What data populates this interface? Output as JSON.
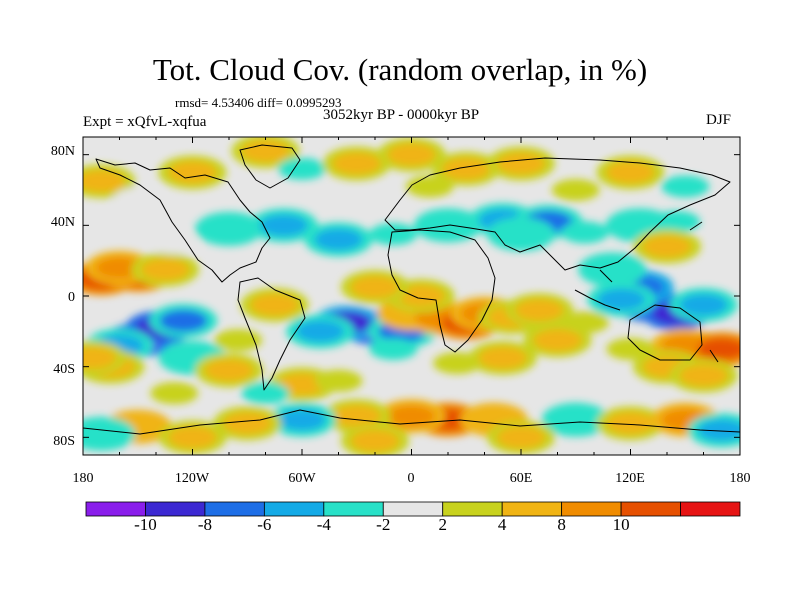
{
  "title": "Tot. Cloud Cov. (random overlap, in %)",
  "stats_line": "rmsd= 4.53406 diff= 0.0995293",
  "period": "3052kyr BP - 0000kyr BP",
  "experiment": "Expt = xQfvL-xqfua",
  "season": "DJF",
  "lon_labels": [
    "180",
    "120W",
    "60W",
    "0",
    "60E",
    "120E",
    "180"
  ],
  "lat_labels": [
    "80N",
    "40N",
    "0",
    "40S",
    "80S"
  ],
  "colorbar": {
    "colors": [
      "#8a1eeb",
      "#3c28d2",
      "#1e6ee6",
      "#14aae6",
      "#28e1c8",
      "#e6e6e6",
      "#c8d21e",
      "#f0b414",
      "#f08c00",
      "#e65000",
      "#e61414"
    ],
    "labels": [
      "-10",
      "-8",
      "-6",
      "-4",
      "-2",
      "2",
      "4",
      "8",
      "10"
    ]
  },
  "map_data": {
    "type": "filled_contour",
    "lon_range": [
      -180,
      180
    ],
    "lat_range": [
      -90,
      90
    ],
    "cells": [
      {
        "lon": -170,
        "lat": 10,
        "v": 11
      },
      {
        "lon": -150,
        "lat": 12,
        "v": 11
      },
      {
        "lon": -160,
        "lat": 16,
        "v": 9
      },
      {
        "lon": -135,
        "lat": 15,
        "v": 5
      },
      {
        "lon": -150,
        "lat": -25,
        "v": -11
      },
      {
        "lon": -138,
        "lat": -18,
        "v": -10
      },
      {
        "lon": -160,
        "lat": -28,
        "v": -6
      },
      {
        "lon": -125,
        "lat": -14,
        "v": -7
      },
      {
        "lon": -120,
        "lat": -35,
        "v": -4
      },
      {
        "lon": -165,
        "lat": -40,
        "v": 5
      },
      {
        "lon": -175,
        "lat": -35,
        "v": 4
      },
      {
        "lon": -100,
        "lat": -42,
        "v": 4
      },
      {
        "lon": -95,
        "lat": -25,
        "v": 3
      },
      {
        "lon": -75,
        "lat": -5,
        "v": 4
      },
      {
        "lon": -20,
        "lat": -18,
        "v": -11
      },
      {
        "lon": -35,
        "lat": -15,
        "v": -9
      },
      {
        "lon": -5,
        "lat": -20,
        "v": -7
      },
      {
        "lon": -50,
        "lat": -20,
        "v": -5
      },
      {
        "lon": -10,
        "lat": -30,
        "v": -3
      },
      {
        "lon": -100,
        "lat": 38,
        "v": -4
      },
      {
        "lon": -70,
        "lat": 40,
        "v": -5
      },
      {
        "lon": -40,
        "lat": 32,
        "v": -5
      },
      {
        "lon": -10,
        "lat": 35,
        "v": -3
      },
      {
        "lon": 20,
        "lat": 40,
        "v": -4
      },
      {
        "lon": 50,
        "lat": 43,
        "v": -5
      },
      {
        "lon": 75,
        "lat": 42,
        "v": -7
      },
      {
        "lon": 60,
        "lat": 35,
        "v": -4
      },
      {
        "lon": 95,
        "lat": 36,
        "v": -3
      },
      {
        "lon": -130,
        "lat": 30,
        "v": -2
      },
      {
        "lon": 130,
        "lat": -5,
        "v": -11
      },
      {
        "lon": 145,
        "lat": -10,
        "v": -10
      },
      {
        "lon": 125,
        "lat": 5,
        "v": -8
      },
      {
        "lon": 115,
        "lat": -2,
        "v": -6
      },
      {
        "lon": 160,
        "lat": -5,
        "v": -5
      },
      {
        "lon": 110,
        "lat": 15,
        "v": -4
      },
      {
        "lon": 125,
        "lat": 40,
        "v": -4
      },
      {
        "lon": 145,
        "lat": 42,
        "v": -3
      },
      {
        "lon": 140,
        "lat": 28,
        "v": 6
      },
      {
        "lon": 0,
        "lat": -10,
        "v": 7
      },
      {
        "lon": 15,
        "lat": -12,
        "v": 9
      },
      {
        "lon": 30,
        "lat": -15,
        "v": 11
      },
      {
        "lon": 40,
        "lat": -10,
        "v": 8
      },
      {
        "lon": 55,
        "lat": -12,
        "v": 5
      },
      {
        "lon": 5,
        "lat": 0,
        "v": 6
      },
      {
        "lon": -20,
        "lat": 5,
        "v": 4
      },
      {
        "lon": 25,
        "lat": -38,
        "v": 3
      },
      {
        "lon": 50,
        "lat": -35,
        "v": 4
      },
      {
        "lon": 80,
        "lat": -25,
        "v": 4
      },
      {
        "lon": 70,
        "lat": -8,
        "v": 4
      },
      {
        "lon": 95,
        "lat": -15,
        "v": 3
      },
      {
        "lon": 150,
        "lat": -28,
        "v": 9
      },
      {
        "lon": 170,
        "lat": -30,
        "v": 11
      },
      {
        "lon": 140,
        "lat": -40,
        "v": 5
      },
      {
        "lon": 160,
        "lat": -45,
        "v": 4
      },
      {
        "lon": 120,
        "lat": -30,
        "v": 3
      },
      {
        "lon": -60,
        "lat": -50,
        "v": 4
      },
      {
        "lon": -40,
        "lat": -48,
        "v": 3
      },
      {
        "lon": -80,
        "lat": -55,
        "v": -3
      },
      {
        "lon": -130,
        "lat": -55,
        "v": 3
      },
      {
        "lon": -120,
        "lat": 70,
        "v": 4
      },
      {
        "lon": -80,
        "lat": 82,
        "v": 5
      },
      {
        "lon": -60,
        "lat": 72,
        "v": -3
      },
      {
        "lon": -30,
        "lat": 75,
        "v": 5
      },
      {
        "lon": 0,
        "lat": 80,
        "v": 5
      },
      {
        "lon": 30,
        "lat": 72,
        "v": 4
      },
      {
        "lon": 60,
        "lat": 75,
        "v": 5
      },
      {
        "lon": 120,
        "lat": 70,
        "v": 4
      },
      {
        "lon": 150,
        "lat": 62,
        "v": -3
      },
      {
        "lon": -170,
        "lat": 65,
        "v": 4
      },
      {
        "lon": 10,
        "lat": 62,
        "v": 3
      },
      {
        "lon": -150,
        "lat": 55,
        "v": -2
      },
      {
        "lon": 90,
        "lat": 60,
        "v": 3
      },
      {
        "lon": 20,
        "lat": -70,
        "v": 11
      },
      {
        "lon": 0,
        "lat": -68,
        "v": 9
      },
      {
        "lon": 45,
        "lat": -70,
        "v": 7
      },
      {
        "lon": -30,
        "lat": -68,
        "v": 5
      },
      {
        "lon": -60,
        "lat": -70,
        "v": -5
      },
      {
        "lon": -90,
        "lat": -72,
        "v": 4
      },
      {
        "lon": -150,
        "lat": -74,
        "v": 7
      },
      {
        "lon": -170,
        "lat": -78,
        "v": -4
      },
      {
        "lon": -120,
        "lat": -80,
        "v": 5
      },
      {
        "lon": 90,
        "lat": -70,
        "v": -4
      },
      {
        "lon": 120,
        "lat": -72,
        "v": 5
      },
      {
        "lon": 150,
        "lat": -70,
        "v": 9
      },
      {
        "lon": 170,
        "lat": -76,
        "v": -6
      },
      {
        "lon": 60,
        "lat": -80,
        "v": 4
      },
      {
        "lon": -20,
        "lat": -82,
        "v": 4
      }
    ]
  }
}
